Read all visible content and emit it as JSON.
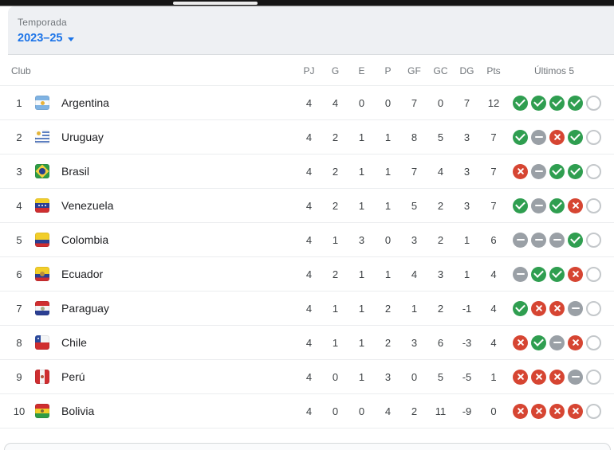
{
  "season": {
    "label": "Temporada",
    "value": "2023–25"
  },
  "table": {
    "club_header": "Club",
    "stat_headers": [
      "PJ",
      "G",
      "E",
      "P",
      "GF",
      "GC",
      "DG",
      "Pts"
    ],
    "last5_header": "Últimos 5",
    "rows": [
      {
        "pos": "1",
        "club": "Argentina",
        "flag": "argentina",
        "stats": [
          "4",
          "4",
          "0",
          "0",
          "7",
          "0",
          "7",
          "12"
        ],
        "last5": [
          "W",
          "W",
          "W",
          "W",
          "E"
        ]
      },
      {
        "pos": "2",
        "club": "Uruguay",
        "flag": "uruguay",
        "stats": [
          "4",
          "2",
          "1",
          "1",
          "8",
          "5",
          "3",
          "7"
        ],
        "last5": [
          "W",
          "D",
          "L",
          "W",
          "E"
        ]
      },
      {
        "pos": "3",
        "club": "Brasil",
        "flag": "brasil",
        "stats": [
          "4",
          "2",
          "1",
          "1",
          "7",
          "4",
          "3",
          "7"
        ],
        "last5": [
          "L",
          "D",
          "W",
          "W",
          "E"
        ]
      },
      {
        "pos": "4",
        "club": "Venezuela",
        "flag": "venezuela",
        "stats": [
          "4",
          "2",
          "1",
          "1",
          "5",
          "2",
          "3",
          "7"
        ],
        "last5": [
          "W",
          "D",
          "W",
          "L",
          "E"
        ]
      },
      {
        "pos": "5",
        "club": "Colombia",
        "flag": "colombia",
        "stats": [
          "4",
          "1",
          "3",
          "0",
          "3",
          "2",
          "1",
          "6"
        ],
        "last5": [
          "D",
          "D",
          "D",
          "W",
          "E"
        ]
      },
      {
        "pos": "6",
        "club": "Ecuador",
        "flag": "ecuador",
        "stats": [
          "4",
          "2",
          "1",
          "1",
          "4",
          "3",
          "1",
          "4"
        ],
        "last5": [
          "D",
          "W",
          "W",
          "L",
          "E"
        ]
      },
      {
        "pos": "7",
        "club": "Paraguay",
        "flag": "paraguay",
        "stats": [
          "4",
          "1",
          "1",
          "2",
          "1",
          "2",
          "-1",
          "4"
        ],
        "last5": [
          "W",
          "L",
          "L",
          "D",
          "E"
        ]
      },
      {
        "pos": "8",
        "club": "Chile",
        "flag": "chile",
        "stats": [
          "4",
          "1",
          "1",
          "2",
          "3",
          "6",
          "-3",
          "4"
        ],
        "last5": [
          "L",
          "W",
          "D",
          "L",
          "E"
        ]
      },
      {
        "pos": "9",
        "club": "Perú",
        "flag": "peru",
        "stats": [
          "4",
          "0",
          "1",
          "3",
          "0",
          "5",
          "-5",
          "1"
        ],
        "last5": [
          "L",
          "L",
          "L",
          "D",
          "E"
        ]
      },
      {
        "pos": "10",
        "club": "Bolivia",
        "flag": "bolivia",
        "stats": [
          "4",
          "0",
          "0",
          "4",
          "2",
          "11",
          "-9",
          "0"
        ],
        "last5": [
          "L",
          "L",
          "L",
          "L",
          "E"
        ]
      }
    ]
  },
  "colors": {
    "accent": "#1a73e8",
    "win": "#2f9e50",
    "draw": "#9aa0a6",
    "loss": "#d64532",
    "empty_ring": "#c4c8cb"
  }
}
